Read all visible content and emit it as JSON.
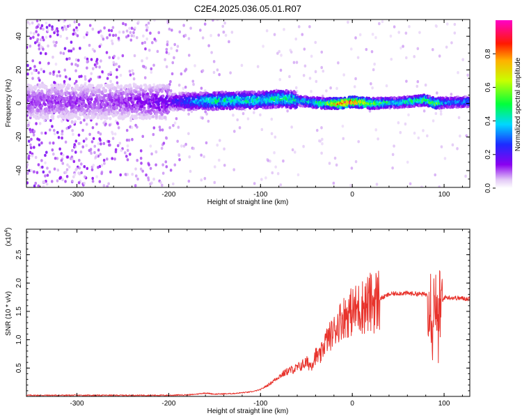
{
  "title": "C2E4.2025.036.05.01.R07",
  "chart_data": [
    {
      "type": "heatmap",
      "xlabel": "Height of straight line (km)",
      "ylabel": "Frequency (Hz)",
      "xlim": [
        -355,
        128
      ],
      "ylim": [
        -50,
        50
      ],
      "xticks": [
        -300,
        -200,
        -100,
        0,
        100
      ],
      "yticks": [
        -40,
        -20,
        0,
        20,
        40
      ],
      "colorbar": {
        "label": "Normalized spectral amplitude",
        "range": [
          0,
          1
        ],
        "ticks": [
          "0.0",
          "0.2",
          "0.4",
          "0.6",
          "0.8"
        ],
        "colormap": "rainbow (violet-blue-cyan-green-yellow-red-magenta)"
      },
      "ridge": {
        "x": [
          -355,
          -300,
          -250,
          -200,
          -150,
          -100,
          -75,
          -50,
          -30,
          -10,
          0,
          20,
          50,
          80,
          90,
          100,
          128
        ],
        "center_hz": [
          1,
          1,
          1,
          1,
          1.5,
          2,
          3,
          1,
          0,
          0,
          1,
          0,
          0.5,
          2,
          0,
          0.5,
          1
        ],
        "amplitude": [
          0.12,
          0.12,
          0.12,
          0.18,
          0.45,
          0.42,
          0.48,
          0.38,
          0.55,
          0.9,
          0.85,
          0.6,
          0.4,
          0.55,
          0.6,
          0.35,
          0.35
        ]
      }
    },
    {
      "type": "line",
      "xlabel": "Height of straight line (km)",
      "ylabel": "SNR (10 * v/v)",
      "multiplier": "(x10",
      "multiplier_exp": "4",
      "xlim": [
        -355,
        128
      ],
      "ylim": [
        0,
        2.95
      ],
      "xticks": [
        -300,
        -200,
        -100,
        0,
        100
      ],
      "yticks": [
        "0.5",
        "1.0",
        "1.5",
        "2.0",
        "2.5"
      ],
      "color": "#e8332c",
      "series": [
        {
          "x": [
            -355,
            -300,
            -250,
            -200,
            -175,
            -160,
            -150,
            -130,
            -110,
            -100,
            -90,
            -80,
            -70,
            -60,
            -50,
            -45,
            -40,
            -35,
            -30,
            -25,
            -20,
            -15,
            -10,
            -5,
            0,
            10,
            20,
            30,
            40,
            50,
            60,
            70,
            80,
            85,
            88,
            90,
            92,
            95,
            100,
            110,
            128
          ],
          "y": [
            0.02,
            0.02,
            0.02,
            0.02,
            0.03,
            0.06,
            0.04,
            0.05,
            0.08,
            0.12,
            0.22,
            0.35,
            0.45,
            0.5,
            0.6,
            0.55,
            0.72,
            0.7,
            0.95,
            1.05,
            1.15,
            1.3,
            1.4,
            1.45,
            1.5,
            1.58,
            1.65,
            1.72,
            1.8,
            1.82,
            1.82,
            1.81,
            1.8,
            1.78,
            1.2,
            2.1,
            1.0,
            1.5,
            1.75,
            1.74,
            1.72
          ]
        }
      ]
    }
  ]
}
